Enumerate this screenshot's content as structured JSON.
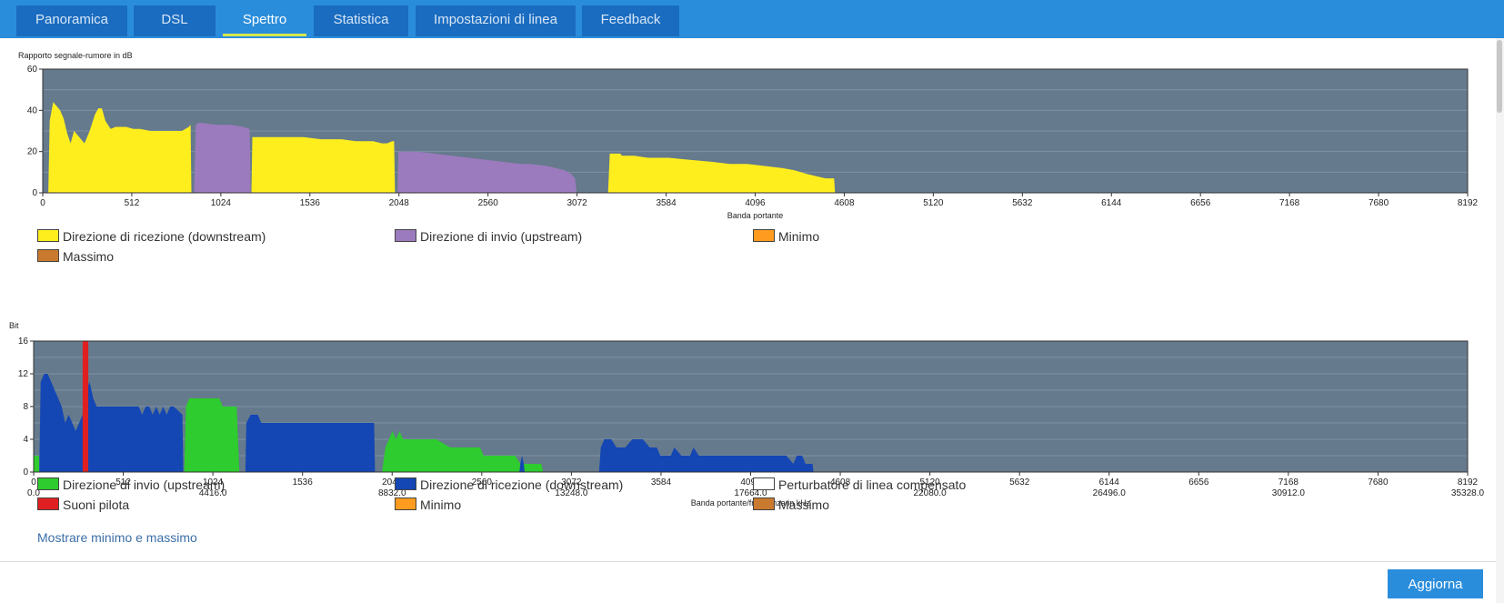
{
  "tabs": [
    "Panoramica",
    "DSL",
    "Spettro",
    "Statistica",
    "Impostazioni di linea",
    "Feedback"
  ],
  "active_tab": "Spettro",
  "colors": {
    "plot_bg": "#657a8c",
    "snr_downstream": "#ffee1e",
    "snr_upstream": "#9b7bbd",
    "bit_upstream": "#2ecc2e",
    "bit_downstream": "#1446b4",
    "pilot": "#e02020",
    "minimo": "#ff9b1e",
    "massimo": "#c97a2e",
    "compensated": "#ffffff"
  },
  "chart_data": [
    {
      "type": "area",
      "ylabel": "Rapporto segnale-rumore in dB",
      "xlabel": "Banda portante",
      "xlim": [
        0,
        8192
      ],
      "ylim": [
        0,
        60
      ],
      "yticks": [
        "0",
        "20",
        "40",
        "60"
      ],
      "xticks": [
        "0",
        "512",
        "1024",
        "1536",
        "2048",
        "2560",
        "3072",
        "3584",
        "4096",
        "4608",
        "5120",
        "5632",
        "6144",
        "6656",
        "7168",
        "7680",
        "8192"
      ],
      "grid": true,
      "series": [
        {
          "name": "Direzione di ricezione (downstream)",
          "color_key": "snr_downstream",
          "segments": [
            [
              [
                32,
                0
              ],
              [
                40,
                35
              ],
              [
                60,
                44
              ],
              [
                80,
                42
              ],
              [
                100,
                40
              ],
              [
                120,
                36
              ],
              [
                140,
                29
              ],
              [
                160,
                24
              ],
              [
                180,
                30
              ],
              [
                200,
                28
              ],
              [
                240,
                24
              ],
              [
                270,
                30
              ],
              [
                300,
                38
              ],
              [
                320,
                41
              ],
              [
                340,
                41
              ],
              [
                360,
                35
              ],
              [
                390,
                31
              ],
              [
                420,
                32
              ],
              [
                480,
                32
              ],
              [
                520,
                31
              ],
              [
                560,
                31
              ],
              [
                620,
                30
              ],
              [
                680,
                30
              ],
              [
                760,
                30
              ],
              [
                800,
                30
              ],
              [
                840,
                32
              ],
              [
                850,
                33
              ],
              [
                855,
                0
              ]
            ],
            [
              [
                1200,
                0
              ],
              [
                1205,
                27
              ],
              [
                1300,
                27
              ],
              [
                1500,
                27
              ],
              [
                1600,
                26
              ],
              [
                1720,
                26
              ],
              [
                1800,
                25
              ],
              [
                1900,
                25
              ],
              [
                1950,
                24
              ],
              [
                1980,
                24
              ],
              [
                2010,
                25
              ],
              [
                2020,
                25
              ],
              [
                2025,
                0
              ]
            ],
            [
              [
                2785,
                0
              ],
              [
                2790,
                11
              ],
              [
                2800,
                11
              ],
              [
                2805,
                0
              ]
            ],
            [
              [
                3250,
                0
              ],
              [
                3260,
                19
              ],
              [
                3320,
                19
              ],
              [
                3330,
                18
              ],
              [
                3400,
                18
              ],
              [
                3480,
                17
              ],
              [
                3600,
                17
              ],
              [
                3720,
                16
              ],
              [
                3850,
                15
              ],
              [
                3950,
                14
              ],
              [
                4050,
                14
              ],
              [
                4150,
                13
              ],
              [
                4250,
                12
              ],
              [
                4320,
                11
              ],
              [
                4400,
                9
              ],
              [
                4450,
                8
              ],
              [
                4500,
                7
              ],
              [
                4550,
                7
              ],
              [
                4555,
                0
              ]
            ]
          ]
        },
        {
          "name": "Direzione di invio (upstream)",
          "color_key": "snr_upstream",
          "segments": [
            [
              [
                870,
                0
              ],
              [
                880,
                33
              ],
              [
                900,
                34
              ],
              [
                1000,
                33
              ],
              [
                1080,
                33
              ],
              [
                1150,
                32
              ],
              [
                1190,
                31
              ],
              [
                1195,
                0
              ]
            ],
            [
              [
                2040,
                0
              ],
              [
                2045,
                20
              ],
              [
                2150,
                20
              ],
              [
                2250,
                19
              ],
              [
                2350,
                18
              ],
              [
                2450,
                17
              ],
              [
                2550,
                16
              ],
              [
                2650,
                15
              ],
              [
                2750,
                14
              ],
              [
                2800,
                14
              ],
              [
                2900,
                13
              ],
              [
                3000,
                11
              ],
              [
                3040,
                9
              ],
              [
                3060,
                7
              ],
              [
                3070,
                0
              ]
            ]
          ]
        }
      ]
    },
    {
      "type": "area",
      "ylabel": "Bit",
      "xlabel": "Banda portante/frequenza in kHz",
      "xlim": [
        0,
        8192
      ],
      "ylim": [
        0,
        16
      ],
      "yticks": [
        "0",
        "4",
        "8",
        "12",
        "16"
      ],
      "xticks": [
        "0",
        "512",
        "1024",
        "1536",
        "2048",
        "2560",
        "3072",
        "3584",
        "4096",
        "4608",
        "5120",
        "5632",
        "6144",
        "6656",
        "7168",
        "7680",
        "8192"
      ],
      "freq_ticks": [
        "0.0",
        "4416.0",
        "8832.0",
        "13248.0",
        "17664.0",
        "22080.0",
        "26496.0",
        "30912.0",
        "35328.0"
      ],
      "grid": true,
      "series": [
        {
          "name": "Direzione di invio (upstream)",
          "color_key": "bit_upstream",
          "segments": [
            [
              [
                0,
                0
              ],
              [
                2,
                2
              ],
              [
                30,
                2
              ],
              [
                32,
                0
              ]
            ],
            [
              [
                860,
                0
              ],
              [
                870,
                8
              ],
              [
                890,
                9
              ],
              [
                1000,
                9
              ],
              [
                1060,
                9
              ],
              [
                1080,
                8
              ],
              [
                1160,
                8
              ],
              [
                1175,
                0
              ]
            ],
            [
              [
                1990,
                0
              ],
              [
                2010,
                3
              ],
              [
                2030,
                4
              ],
              [
                2050,
                5
              ],
              [
                2070,
                4
              ],
              [
                2090,
                5
              ],
              [
                2110,
                4
              ],
              [
                2200,
                4
              ],
              [
                2300,
                4
              ],
              [
                2380,
                3
              ],
              [
                2550,
                3
              ],
              [
                2570,
                2
              ],
              [
                2750,
                2
              ],
              [
                2780,
                1
              ],
              [
                2800,
                1
              ],
              [
                2880,
                1
              ],
              [
                2900,
                1
              ],
              [
                2910,
                0
              ]
            ]
          ]
        },
        {
          "name": "Direzione di ricezione (downstream)",
          "color_key": "bit_downstream",
          "segments": [
            [
              [
                32,
                0
              ],
              [
                40,
                11
              ],
              [
                60,
                12
              ],
              [
                80,
                12
              ],
              [
                100,
                11
              ],
              [
                120,
                10
              ],
              [
                140,
                9
              ],
              [
                160,
                8
              ],
              [
                180,
                6
              ],
              [
                200,
                7
              ],
              [
                220,
                6
              ],
              [
                240,
                5
              ],
              [
                260,
                6
              ],
              [
                280,
                7
              ],
              [
                300,
                10
              ],
              [
                320,
                11
              ],
              [
                340,
                9
              ],
              [
                360,
                8
              ],
              [
                400,
                8
              ],
              [
                460,
                8
              ],
              [
                500,
                8
              ],
              [
                600,
                8
              ],
              [
                620,
                7
              ],
              [
                640,
                8
              ],
              [
                660,
                8
              ],
              [
                680,
                7
              ],
              [
                700,
                8
              ],
              [
                720,
                7
              ],
              [
                740,
                8
              ],
              [
                760,
                7
              ],
              [
                780,
                8
              ],
              [
                800,
                8
              ],
              [
                850,
                7
              ],
              [
                855,
                0
              ]
            ],
            [
              [
                1210,
                0
              ],
              [
                1215,
                6
              ],
              [
                1240,
                7
              ],
              [
                1280,
                7
              ],
              [
                1300,
                6
              ],
              [
                1500,
                6
              ],
              [
                1700,
                6
              ],
              [
                1900,
                6
              ],
              [
                1945,
                6
              ],
              [
                1950,
                0
              ]
            ],
            [
              [
                2775,
                0
              ],
              [
                2780,
                1
              ],
              [
                2790,
                2
              ],
              [
                2800,
                1
              ],
              [
                2805,
                0
              ]
            ],
            [
              [
                3230,
                0
              ],
              [
                3240,
                3
              ],
              [
                3260,
                4
              ],
              [
                3300,
                4
              ],
              [
                3330,
                3
              ],
              [
                3380,
                3
              ],
              [
                3420,
                4
              ],
              [
                3480,
                4
              ],
              [
                3520,
                3
              ],
              [
                3560,
                3
              ],
              [
                3580,
                2
              ],
              [
                3640,
                2
              ],
              [
                3660,
                3
              ],
              [
                3700,
                2
              ],
              [
                3750,
                2
              ],
              [
                3770,
                3
              ],
              [
                3800,
                2
              ],
              [
                4000,
                2
              ],
              [
                4200,
                2
              ],
              [
                4300,
                2
              ],
              [
                4340,
                1
              ],
              [
                4360,
                2
              ],
              [
                4390,
                2
              ],
              [
                4410,
                1
              ],
              [
                4440,
                1
              ],
              [
                4450,
                1
              ],
              [
                4455,
                0
              ]
            ]
          ]
        },
        {
          "name": "Suoni pilota",
          "color_key": "pilot",
          "bars": [
            [
              280,
              312
            ]
          ]
        }
      ]
    }
  ],
  "legend1": [
    {
      "label": "Direzione di ricezione (downstream)",
      "color_key": "snr_downstream"
    },
    {
      "label": "Direzione di invio (upstream)",
      "color_key": "snr_upstream"
    },
    {
      "label": "Minimo",
      "color_key": "minimo"
    },
    {
      "label": "Massimo",
      "color_key": "massimo"
    }
  ],
  "legend2": [
    {
      "label": "Direzione di invio (upstream)",
      "color_key": "bit_upstream"
    },
    {
      "label": "Direzione di ricezione (downstream)",
      "color_key": "bit_downstream"
    },
    {
      "label": "Perturbatore di linea compensato",
      "color_key": "compensated"
    },
    {
      "label": "Suoni pilota",
      "color_key": "pilot"
    },
    {
      "label": "Minimo",
      "color_key": "minimo"
    },
    {
      "label": "Massimo",
      "color_key": "massimo"
    }
  ],
  "link_label": "Mostrare minimo e massimo",
  "button_label": "Aggiorna"
}
